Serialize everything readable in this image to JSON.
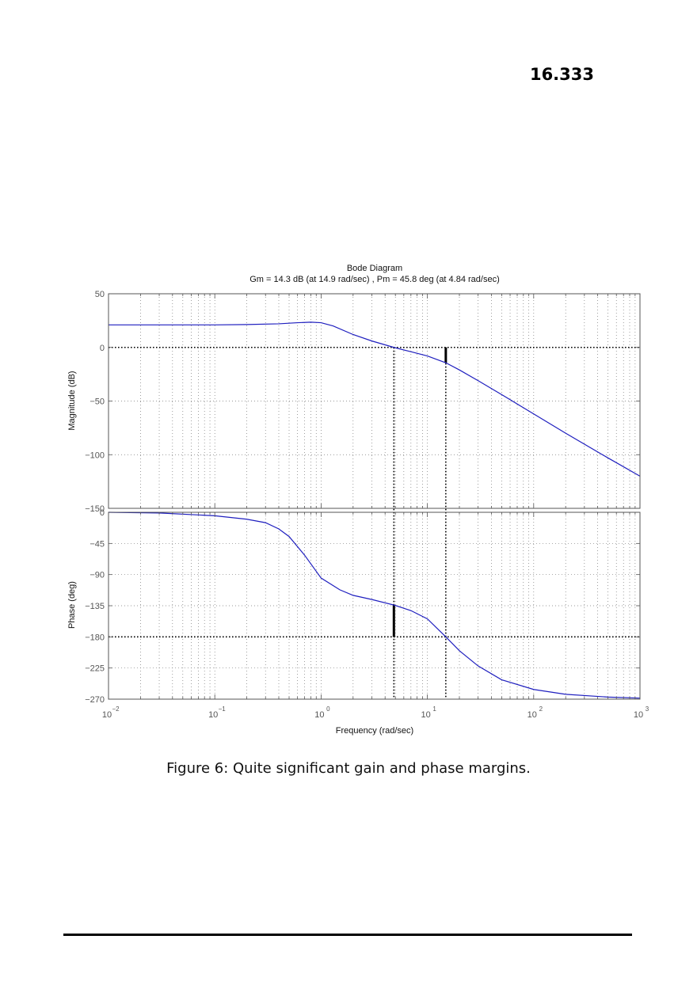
{
  "header": {
    "course_number": "16.333"
  },
  "figure": {
    "caption": "Figure 6: Quite significant gain and phase margins."
  },
  "chart_data": {
    "type": "line",
    "title": "Bode Diagram",
    "subtitle": "Gm = 14.3 dB (at 14.9 rad/sec) ,  Pm = 45.8 deg (at 4.84 rad/sec)",
    "xlabel": "Frequency  (rad/sec)",
    "xscale": "log",
    "xlim": [
      0.01,
      1000
    ],
    "x_ticks": [
      {
        "base": "10",
        "exp": "−2"
      },
      {
        "base": "10",
        "exp": "−1"
      },
      {
        "base": "10",
        "exp": "0"
      },
      {
        "base": "10",
        "exp": "1"
      },
      {
        "base": "10",
        "exp": "2"
      },
      {
        "base": "10",
        "exp": "3"
      }
    ],
    "grid": true,
    "line_color": "#1f1fbf",
    "gain_crossover": 4.84,
    "phase_crossover": 14.9,
    "gain_margin_db": 14.3,
    "phase_margin_deg": 45.8,
    "magnitude": {
      "ylabel": "Magnitude (dB)",
      "ylim": [
        -150,
        50
      ],
      "y_tick_labels": [
        "50",
        "0",
        "−50",
        "−100",
        "−150"
      ],
      "x": [
        0.01,
        0.05,
        0.1,
        0.2,
        0.4,
        0.6,
        0.8,
        1.0,
        1.3,
        2,
        3,
        4.84,
        7,
        10,
        14.9,
        20,
        30,
        50,
        100,
        200,
        500,
        1000
      ],
      "y": [
        21,
        21,
        21,
        21.3,
        22,
        23,
        23.5,
        23,
        20,
        12,
        6,
        0,
        -4,
        -8,
        -14.3,
        -21,
        -31,
        -44,
        -62,
        -80,
        -103,
        -120
      ]
    },
    "phase": {
      "ylabel": "Phase (deg)",
      "ylim": [
        -270,
        0
      ],
      "y_tick_labels": [
        "0",
        "−45",
        "−90",
        "−135",
        "−180",
        "−225",
        "−270"
      ],
      "x": [
        0.01,
        0.03,
        0.1,
        0.2,
        0.3,
        0.4,
        0.5,
        0.7,
        1.0,
        1.5,
        2,
        3,
        4.84,
        7,
        10,
        14.9,
        20,
        30,
        50,
        100,
        200,
        500,
        1000
      ],
      "y": [
        0,
        -1,
        -5,
        -10,
        -15,
        -24,
        -35,
        -62,
        -95,
        -112,
        -120,
        -126,
        -134,
        -142,
        -154,
        -180,
        -200,
        -222,
        -242,
        -256,
        -263,
        -267,
        -268.5
      ]
    }
  }
}
